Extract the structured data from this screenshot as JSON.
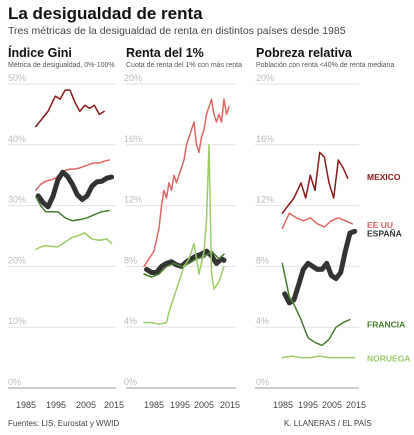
{
  "title": "La desigualdad de renta",
  "subtitle": "Tres métricas de la desigualdad de renta en distintos países desde 1985",
  "footer": {
    "source": "Fuentes: LIS, Eurostat y WWID",
    "credit": "K. LLANERAS  /  EL PAÍS"
  },
  "colors": {
    "mexico": "#8b1a1a",
    "eeuu": "#e06666",
    "espana": "#333333",
    "francia": "#4a7c2f",
    "noruega": "#9ccc65"
  },
  "chart_data": [
    {
      "type": "line",
      "title": "Índice Gini",
      "subtitle": "Métrica de desigualdad, 0%-100%",
      "ylim": [
        0,
        50
      ],
      "yticks": [
        0,
        10,
        20,
        30,
        40,
        50
      ],
      "ytick_labels": [
        "0%",
        "10%",
        "20%",
        "30%",
        "40%",
        "50%"
      ],
      "xticks": [
        1985,
        1995,
        2005,
        2015
      ],
      "series": [
        {
          "key": "mexico",
          "x": [
            1984,
            1989,
            1992,
            1994,
            1996,
            1998,
            2000,
            2002,
            2004,
            2006,
            2008,
            2010,
            2012
          ],
          "values": [
            43.0,
            45.5,
            48.0,
            47.5,
            49.0,
            49.0,
            47.0,
            45.5,
            46.5,
            46.0,
            46.5,
            45.0,
            45.5
          ]
        },
        {
          "key": "eeuu",
          "x": [
            1984,
            1986,
            1988,
            1990,
            1992,
            1994,
            1996,
            1998,
            2000,
            2002,
            2004,
            2006,
            2008,
            2010,
            2012,
            2014
          ],
          "values": [
            32.5,
            33.5,
            34.0,
            34.2,
            34.5,
            35.2,
            35.8,
            36.0,
            36.0,
            36.2,
            36.5,
            36.8,
            37.0,
            37.0,
            37.3,
            37.5
          ]
        },
        {
          "key": "espana",
          "x": [
            1985,
            1987,
            1989,
            1991,
            1993,
            1995,
            1997,
            1999,
            2001,
            2003,
            2005,
            2007,
            2009,
            2011,
            2013,
            2015
          ],
          "values": [
            31.6,
            30.5,
            29.8,
            31.5,
            34.2,
            35.5,
            34.8,
            33.5,
            31.8,
            31.0,
            31.6,
            33.2,
            33.9,
            34.0,
            34.5,
            34.7
          ]
        },
        {
          "key": "francia",
          "x": [
            1984,
            1986,
            1988,
            1990,
            1993,
            1996,
            1999,
            2002,
            2005,
            2008,
            2011,
            2014
          ],
          "values": [
            31.5,
            30.0,
            29.0,
            29.0,
            29.0,
            28.0,
            27.5,
            27.7,
            28.0,
            28.5,
            29.0,
            29.2
          ]
        },
        {
          "key": "noruega",
          "x": [
            1984,
            1986,
            1988,
            1990,
            1993,
            1996,
            1999,
            2001,
            2004,
            2007,
            2010,
            2013,
            2015
          ],
          "values": [
            22.8,
            23.2,
            23.4,
            23.3,
            23.2,
            24.0,
            24.8,
            25.0,
            25.5,
            24.5,
            24.3,
            24.5,
            23.8
          ]
        }
      ]
    },
    {
      "type": "line",
      "title": "Renta del 1%",
      "subtitle": "Cuota de renta del 1% con más renta",
      "ylim": [
        0,
        20
      ],
      "yticks": [
        0,
        4,
        8,
        12,
        16,
        20
      ],
      "ytick_labels": [
        "0%",
        "4%",
        "8%",
        "12%",
        "16%",
        "20%"
      ],
      "xticks": [
        1985,
        1995,
        2005,
        2015
      ],
      "series": [
        {
          "key": "eeuu",
          "x": [
            1980,
            1982,
            1984,
            1986,
            1987,
            1988,
            1989,
            1990,
            1991,
            1992,
            1993,
            1994,
            1995,
            1996,
            1997,
            1998,
            1999,
            2000,
            2001,
            2002,
            2003,
            2004,
            2005,
            2006,
            2007,
            2008,
            2009,
            2010,
            2011,
            2012,
            2013,
            2014
          ],
          "values": [
            8.0,
            8.5,
            9.0,
            10.5,
            12.0,
            13.0,
            12.5,
            13.5,
            13.0,
            14.0,
            13.5,
            14.0,
            14.5,
            15.0,
            16.0,
            16.5,
            17.0,
            17.5,
            16.0,
            15.5,
            16.5,
            17.0,
            18.0,
            18.5,
            19.0,
            18.0,
            17.5,
            18.0,
            17.5,
            19.0,
            18.0,
            18.5
          ]
        },
        {
          "key": "espana",
          "x": [
            1981,
            1983,
            1985,
            1987,
            1989,
            1991,
            1993,
            1995,
            1997,
            1999,
            2001,
            2003,
            2005,
            2007,
            2009,
            2011,
            2012
          ],
          "values": [
            7.8,
            7.6,
            7.6,
            8.0,
            8.2,
            8.3,
            8.1,
            8.0,
            8.3,
            8.5,
            8.7,
            8.8,
            9.0,
            8.7,
            8.2,
            8.5,
            8.4
          ]
        },
        {
          "key": "francia",
          "x": [
            1980,
            1983,
            1986,
            1989,
            1992,
            1995,
            1998,
            2001,
            2004,
            2007,
            2010,
            2012
          ],
          "values": [
            7.5,
            7.3,
            7.5,
            8.0,
            8.2,
            8.0,
            8.2,
            8.5,
            8.6,
            9.0,
            8.5,
            8.8
          ]
        },
        {
          "key": "noruega",
          "x": [
            1980,
            1983,
            1986,
            1989,
            1990,
            1992,
            1994,
            1996,
            1998,
            2000,
            2002,
            2004,
            2005,
            2006,
            2007,
            2008,
            2010,
            2012
          ],
          "values": [
            4.3,
            4.3,
            4.2,
            4.3,
            5.0,
            6.0,
            7.0,
            8.0,
            8.5,
            9.5,
            7.5,
            9.0,
            11.0,
            16.0,
            7.5,
            6.5,
            7.0,
            8.0
          ]
        }
      ]
    },
    {
      "type": "line",
      "title": "Pobreza relativa",
      "subtitle": "Población con renta <40% de renta mediana",
      "ylim": [
        0,
        20
      ],
      "yticks": [
        0,
        4,
        8,
        12,
        16,
        20
      ],
      "ytick_labels": [
        "0%",
        "4%",
        "8%",
        "12%",
        "16%",
        "20%"
      ],
      "xticks": [
        1985,
        1995,
        2005,
        2015
      ],
      "series": [
        {
          "key": "mexico",
          "label": "MEXICO",
          "x": [
            1984,
            1989,
            1992,
            1994,
            1996,
            1998,
            2000,
            2002,
            2004,
            2006,
            2008,
            2010,
            2012
          ],
          "values": [
            11.5,
            12.5,
            13.5,
            12.5,
            14.0,
            13.0,
            15.5,
            15.2,
            13.5,
            12.5,
            15.0,
            14.5,
            13.8
          ]
        },
        {
          "key": "eeuu",
          "label": "EE UU",
          "x": [
            1984,
            1987,
            1990,
            1993,
            1996,
            1999,
            2002,
            2005,
            2008,
            2011,
            2014
          ],
          "values": [
            10.5,
            11.5,
            11.2,
            11.0,
            11.2,
            10.8,
            10.6,
            11.0,
            11.2,
            11.0,
            10.8
          ]
        },
        {
          "key": "espana",
          "label": "ESPAÑA",
          "x": [
            1985,
            1987,
            1989,
            1991,
            1993,
            1995,
            1997,
            1999,
            2001,
            2003,
            2005,
            2007,
            2009,
            2011,
            2013,
            2015
          ],
          "values": [
            6.2,
            5.6,
            5.8,
            6.8,
            7.8,
            8.2,
            8.0,
            7.8,
            7.8,
            8.2,
            7.4,
            7.2,
            7.6,
            9.0,
            10.2,
            10.3
          ]
        },
        {
          "key": "francia",
          "label": "FRANCIA",
          "x": [
            1984,
            1987,
            1989,
            1992,
            1995,
            1998,
            2001,
            2004,
            2007,
            2010,
            2013
          ],
          "values": [
            8.2,
            6.0,
            5.5,
            4.5,
            3.3,
            3.0,
            2.8,
            3.2,
            4.0,
            4.3,
            4.5
          ]
        },
        {
          "key": "noruega",
          "label": "NORUEGA",
          "x": [
            1984,
            1988,
            1992,
            1996,
            2000,
            2004,
            2008,
            2012,
            2015
          ],
          "values": [
            2.0,
            2.1,
            2.0,
            2.0,
            2.1,
            2.0,
            2.0,
            2.0,
            2.0
          ]
        }
      ]
    }
  ]
}
